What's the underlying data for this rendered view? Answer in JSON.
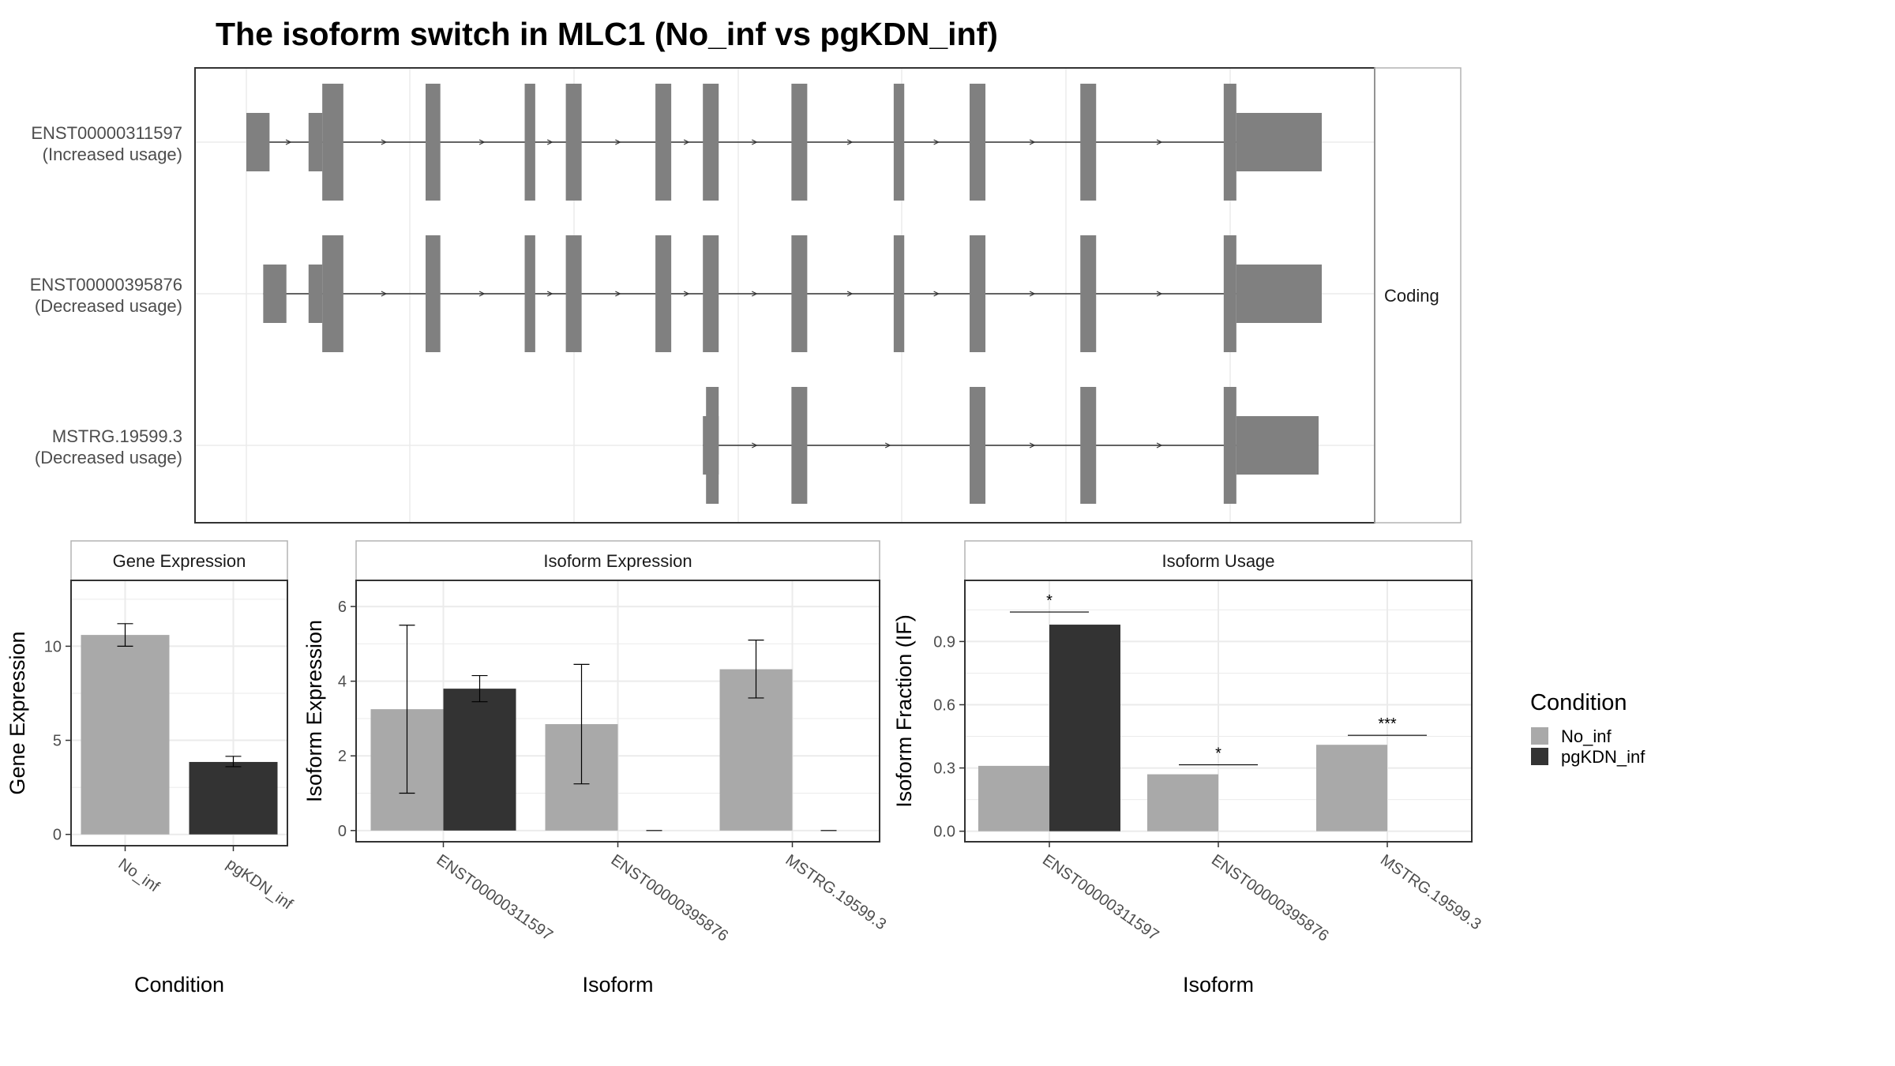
{
  "title": "The isoform switch in MLC1 (No_inf vs pgKDN_inf)",
  "colors": {
    "No_inf": "#a9a9a9",
    "pgKDN_inf": "#333333",
    "exon": "#808080",
    "intron": "#333333",
    "grid": "#ebebeb",
    "panel_border": "#333333",
    "strip_border": "#b3b3b3"
  },
  "legend": {
    "title": "Condition",
    "items": [
      {
        "label": "No_inf",
        "color": "#a9a9a9"
      },
      {
        "label": "pgKDN_inf",
        "color": "#333333"
      }
    ]
  },
  "chart_data": [
    {
      "type": "gene-structure",
      "strip_label": "Coding",
      "exon_scale_max": 100,
      "transcripts": [
        {
          "label": "ENST00000311597",
          "sublabel": "(Increased usage)",
          "utr": [
            [
              1,
              3.2
            ],
            [
              6.9,
              8.2
            ],
            [
              94.9,
              103
            ]
          ],
          "cds": [
            [
              8.2,
              10.2
            ],
            [
              18,
              19.4
            ],
            [
              27.4,
              28.4
            ],
            [
              31.3,
              32.8
            ],
            [
              39.8,
              41.3
            ],
            [
              44.3,
              45.8
            ],
            [
              52.7,
              54.2
            ],
            [
              62.4,
              63.4
            ],
            [
              69.6,
              71.1
            ],
            [
              80.1,
              81.6
            ],
            [
              93.7,
              94.9
            ]
          ]
        },
        {
          "label": "ENST00000395876",
          "sublabel": "(Decreased usage)",
          "utr": [
            [
              2.6,
              4.8
            ],
            [
              6.9,
              8.2
            ],
            [
              94.9,
              103
            ]
          ],
          "cds": [
            [
              8.2,
              10.2
            ],
            [
              18,
              19.4
            ],
            [
              27.4,
              28.4
            ],
            [
              31.3,
              32.8
            ],
            [
              39.8,
              41.3
            ],
            [
              44.3,
              45.8
            ],
            [
              52.7,
              54.2
            ],
            [
              62.4,
              63.4
            ],
            [
              69.6,
              71.1
            ],
            [
              80.1,
              81.6
            ],
            [
              93.7,
              94.9
            ]
          ]
        },
        {
          "label": "MSTRG.19599.3",
          "sublabel": "(Decreased usage)",
          "utr": [
            [
              44.3,
              45.8
            ],
            [
              94.9,
              102.7
            ]
          ],
          "cds": [
            [
              44.6,
              45.8
            ],
            [
              52.7,
              54.2
            ],
            [
              69.6,
              71.1
            ],
            [
              80.1,
              81.6
            ],
            [
              93.7,
              94.9
            ]
          ]
        }
      ]
    },
    {
      "type": "bar",
      "strip_label": "Gene Expression",
      "xlabel": "Condition",
      "ylabel": "Gene Expression",
      "categories": [
        "No_inf",
        "pgKDN_inf"
      ],
      "values": [
        10.6,
        3.85
      ],
      "errors": [
        [
          10.0,
          11.2
        ],
        [
          3.6,
          4.15
        ]
      ],
      "ylim": [
        -0.6,
        13.5
      ],
      "yticks": [
        0,
        5,
        10
      ],
      "ytick_labels": [
        "0",
        "5",
        "10"
      ]
    },
    {
      "type": "bar",
      "strip_label": "Isoform Expression",
      "xlabel": "Isoform",
      "ylabel": "Isoform Expression",
      "categories": [
        "ENST00000311597",
        "ENST00000395876",
        "MSTRG.19599.3"
      ],
      "series": [
        {
          "name": "No_inf",
          "values": [
            3.25,
            2.85,
            4.32
          ],
          "errors": [
            [
              1.0,
              5.5
            ],
            [
              1.25,
              4.45
            ],
            [
              3.55,
              5.1
            ]
          ]
        },
        {
          "name": "pgKDN_inf",
          "values": [
            3.8,
            0,
            0
          ],
          "errors": [
            [
              3.45,
              4.15
            ],
            [
              0,
              0
            ],
            [
              0,
              0
            ]
          ]
        }
      ],
      "ylim": [
        -0.3,
        6.7
      ],
      "yticks": [
        0,
        2,
        4,
        6
      ],
      "ytick_labels": [
        "0",
        "2",
        "4",
        "6"
      ]
    },
    {
      "type": "bar",
      "strip_label": "Isoform Usage",
      "xlabel": "Isoform",
      "ylabel": "Isoform Fraction (IF)",
      "categories": [
        "ENST00000311597",
        "ENST00000395876",
        "MSTRG.19599.3"
      ],
      "series": [
        {
          "name": "No_inf",
          "values": [
            0.31,
            0.27,
            0.41
          ]
        },
        {
          "name": "pgKDN_inf",
          "values": [
            0.98,
            0,
            0
          ]
        }
      ],
      "significance": [
        {
          "label": "*",
          "y": 1.04
        },
        {
          "label": "*",
          "y": 0.315
        },
        {
          "label": "***",
          "y": 0.455
        }
      ],
      "ylim": [
        -0.05,
        1.19
      ],
      "yticks": [
        0.0,
        0.3,
        0.6,
        0.9
      ],
      "ytick_labels": [
        "0.0",
        "0.3",
        "0.6",
        "0.9"
      ]
    }
  ]
}
